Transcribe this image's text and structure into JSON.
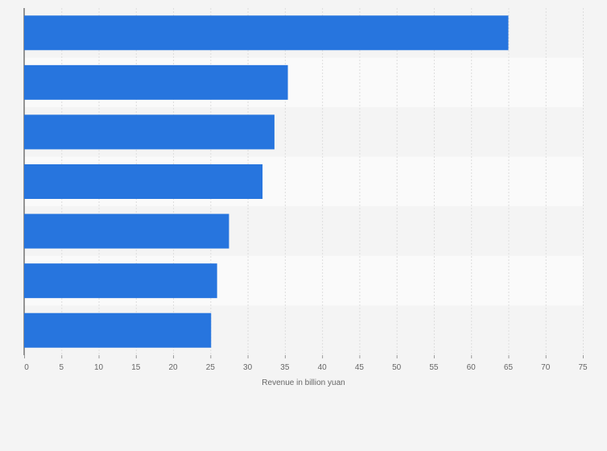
{
  "chart_data": {
    "type": "bar",
    "orientation": "horizontal",
    "categories": [
      "",
      "",
      "",
      "",
      "",
      "",
      ""
    ],
    "values": [
      65,
      35.4,
      33.6,
      32,
      27.5,
      25.9,
      25.1
    ],
    "title": "",
    "xlabel": "Revenue in billion yuan",
    "ylabel": "",
    "xlim": [
      0,
      75
    ],
    "xticks": [
      0,
      5,
      10,
      15,
      20,
      25,
      30,
      35,
      40,
      45,
      50,
      55,
      60,
      65,
      70,
      75
    ],
    "grid": true,
    "bar_color": "#2775de",
    "band_colors": [
      "#f4f4f4",
      "#fafafa"
    ],
    "background_color": "#f4f4f4"
  }
}
